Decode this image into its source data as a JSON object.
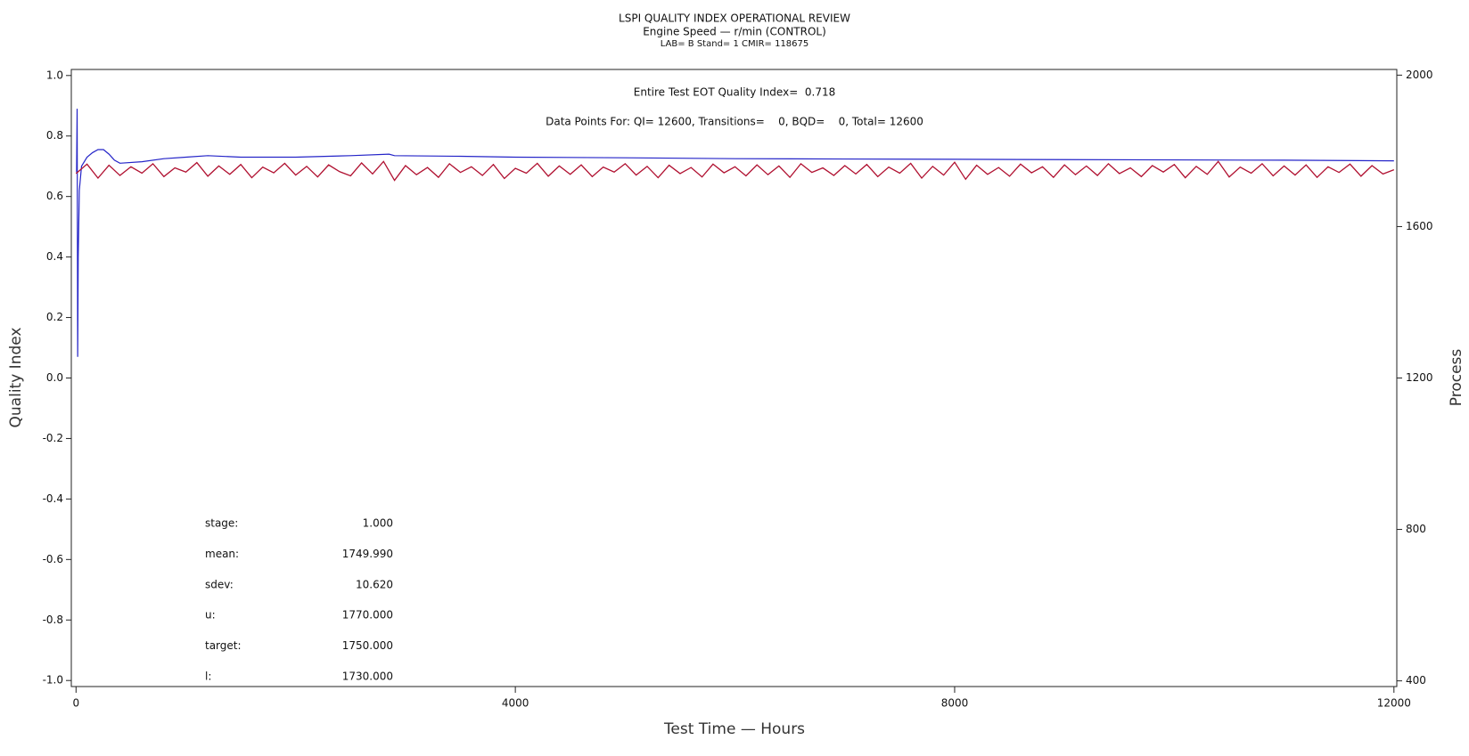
{
  "chart_data": {
    "type": "line",
    "title": "LSPI QUALITY INDEX OPERATIONAL REVIEW",
    "subtitle": "Engine Speed — r/min (CONTROL)",
    "caption": "LAB= B Stand= 1 CMIR= 118675",
    "annotations": [
      "Entire Test EOT Quality Index=  0.718",
      "Data Points For: QI= 12600, Transitions=    0, BQD=    0, Total= 12600"
    ],
    "stats": [
      {
        "label": "stage:",
        "value": "1.000"
      },
      {
        "label": "mean:",
        "value": "1749.990"
      },
      {
        "label": "sdev:",
        "value": "10.620"
      },
      {
        "label": "u:",
        "value": "1770.000"
      },
      {
        "label": "target:",
        "value": "1750.000"
      },
      {
        "label": "l:",
        "value": "1730.000"
      }
    ],
    "x_label": "Test Time — Hours",
    "y_label": "Quality Index",
    "y2_label": "Process",
    "xlim": [
      -43,
      12026
    ],
    "xticks": [
      0,
      4000,
      8000,
      12000
    ],
    "ylim": [
      -1.02,
      1.02
    ],
    "yticks": [
      {
        "value": -1,
        "label": "-1.0"
      },
      -0.8,
      -0.6,
      -0.4,
      -0.2,
      {
        "value": 0,
        "label": "0.0"
      },
      0.2,
      0.4,
      0.6,
      0.8,
      {
        "value": 1,
        "label": "1.0"
      }
    ],
    "y2lim": [
      385,
      2015
    ],
    "y2ticks": [
      400,
      800,
      1200,
      1600,
      2000
    ],
    "series": [
      {
        "name": "Quality Index",
        "color": "#2424c8",
        "x": [
          5,
          10,
          15,
          20,
          30,
          50,
          100,
          150,
          200,
          250,
          300,
          350,
          400,
          600,
          800,
          1000,
          1200,
          1500,
          2000,
          2500,
          2850,
          2900,
          3500,
          4000,
          5000,
          6000,
          7000,
          8000,
          9000,
          10000,
          11000,
          12000
        ],
        "values": [
          0.68,
          0.89,
          0.07,
          0.4,
          0.62,
          0.7,
          0.73,
          0.745,
          0.755,
          0.755,
          0.74,
          0.72,
          0.71,
          0.715,
          0.725,
          0.73,
          0.735,
          0.73,
          0.73,
          0.735,
          0.74,
          0.735,
          0.733,
          0.73,
          0.728,
          0.725,
          0.724,
          0.723,
          0.722,
          0.721,
          0.72,
          0.718
        ]
      },
      {
        "name": "Process",
        "color": "#b01030",
        "axis": "y2",
        "x": [
          0,
          100,
          200,
          300,
          400,
          500,
          600,
          700,
          800,
          900,
          1000,
          1100,
          1200,
          1300,
          1400,
          1500,
          1600,
          1700,
          1800,
          1900,
          2000,
          2100,
          2200,
          2300,
          2400,
          2500,
          2600,
          2700,
          2800,
          2900,
          3000,
          3100,
          3200,
          3300,
          3400,
          3500,
          3600,
          3700,
          3800,
          3900,
          4000,
          4100,
          4200,
          4300,
          4400,
          4500,
          4600,
          4700,
          4800,
          4900,
          5000,
          5100,
          5200,
          5300,
          5400,
          5500,
          5600,
          5700,
          5800,
          5900,
          6000,
          6100,
          6200,
          6300,
          6400,
          6500,
          6600,
          6700,
          6800,
          6900,
          7000,
          7100,
          7200,
          7300,
          7400,
          7500,
          7600,
          7700,
          7800,
          7900,
          8000,
          8100,
          8200,
          8300,
          8400,
          8500,
          8600,
          8700,
          8800,
          8900,
          9000,
          9100,
          9200,
          9300,
          9400,
          9500,
          9600,
          9700,
          9800,
          9900,
          10000,
          10100,
          10200,
          10300,
          10400,
          10500,
          10600,
          10700,
          10800,
          10900,
          11000,
          11100,
          11200,
          11300,
          11400,
          11500,
          11600,
          11700,
          11800,
          11900,
          12000
        ],
        "values": [
          1740,
          1765,
          1728,
          1762,
          1735,
          1758,
          1741,
          1766,
          1732,
          1755,
          1744,
          1769,
          1733,
          1760,
          1738,
          1764,
          1729,
          1757,
          1742,
          1767,
          1736,
          1759,
          1731,
          1763,
          1745,
          1734,
          1768,
          1739,
          1772,
          1722,
          1761,
          1737,
          1756,
          1730,
          1766,
          1743,
          1758,
          1735,
          1764,
          1727,
          1754,
          1741,
          1767,
          1733,
          1760,
          1738,
          1763,
          1732,
          1757,
          1744,
          1766,
          1736,
          1759,
          1729,
          1762,
          1740,
          1756,
          1731,
          1765,
          1742,
          1758,
          1734,
          1763,
          1737,
          1760,
          1730,
          1766,
          1743,
          1755,
          1735,
          1761,
          1739,
          1764,
          1732,
          1757,
          1741,
          1767,
          1728,
          1759,
          1736,
          1770,
          1725,
          1762,
          1738,
          1756,
          1733,
          1765,
          1742,
          1758,
          1730,
          1763,
          1737,
          1760,
          1735,
          1766,
          1740,
          1755,
          1732,
          1761,
          1744,
          1764,
          1729,
          1759,
          1738,
          1772,
          1731,
          1757,
          1741,
          1766,
          1734,
          1760,
          1736,
          1763,
          1730,
          1758,
          1743,
          1765,
          1733,
          1761,
          1739,
          1750
        ]
      }
    ]
  }
}
